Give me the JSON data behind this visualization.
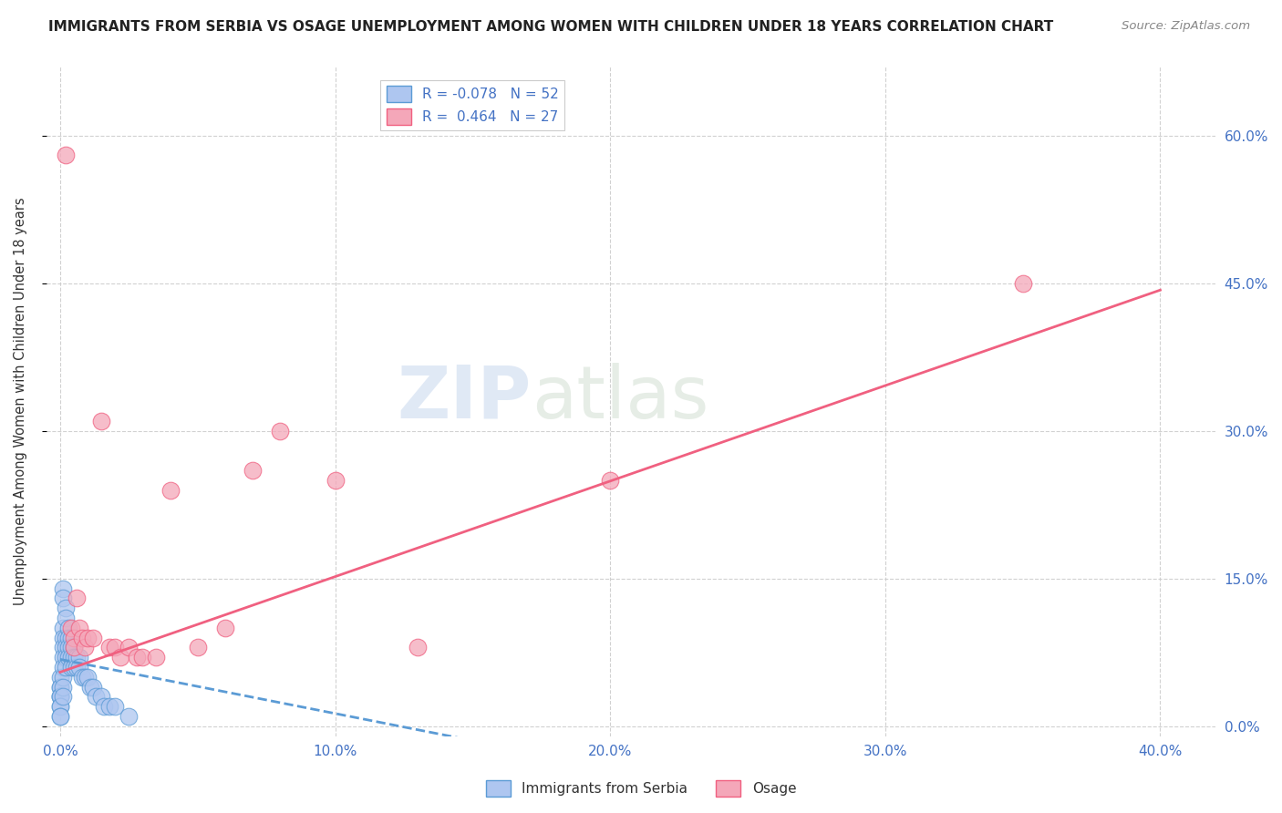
{
  "title": "IMMIGRANTS FROM SERBIA VS OSAGE UNEMPLOYMENT AMONG WOMEN WITH CHILDREN UNDER 18 YEARS CORRELATION CHART",
  "source": "Source: ZipAtlas.com",
  "ylabel": "Unemployment Among Women with Children Under 18 years",
  "xlabel_ticks": [
    "0.0%",
    "10.0%",
    "20.0%",
    "30.0%",
    "40.0%"
  ],
  "xlabel_vals": [
    0.0,
    0.1,
    0.2,
    0.3,
    0.4
  ],
  "ylabel_ticks": [
    "0.0%",
    "15.0%",
    "30.0%",
    "45.0%",
    "60.0%"
  ],
  "ylabel_vals": [
    0.0,
    0.15,
    0.3,
    0.45,
    0.6
  ],
  "xlim": [
    -0.005,
    0.42
  ],
  "ylim": [
    -0.01,
    0.67
  ],
  "legend_entries": [
    {
      "label": "R = -0.078   N = 52",
      "facecolor": "#aec6f0",
      "edgecolor": "#5b9bd5"
    },
    {
      "label": "R =  0.464   N = 27",
      "facecolor": "#f4a7b9",
      "edgecolor": "#f06080"
    }
  ],
  "serbia_scatter_x": [
    0.0,
    0.0,
    0.0,
    0.0,
    0.0,
    0.0,
    0.0,
    0.0,
    0.0,
    0.0,
    0.001,
    0.001,
    0.001,
    0.001,
    0.001,
    0.001,
    0.001,
    0.001,
    0.001,
    0.001,
    0.002,
    0.002,
    0.002,
    0.002,
    0.002,
    0.002,
    0.003,
    0.003,
    0.003,
    0.003,
    0.004,
    0.004,
    0.004,
    0.004,
    0.005,
    0.005,
    0.005,
    0.006,
    0.006,
    0.007,
    0.007,
    0.008,
    0.009,
    0.01,
    0.011,
    0.012,
    0.013,
    0.015,
    0.016,
    0.018,
    0.02,
    0.025
  ],
  "serbia_scatter_y": [
    0.05,
    0.04,
    0.04,
    0.03,
    0.03,
    0.03,
    0.02,
    0.02,
    0.01,
    0.01,
    0.14,
    0.13,
    0.1,
    0.09,
    0.08,
    0.07,
    0.06,
    0.05,
    0.04,
    0.03,
    0.12,
    0.11,
    0.09,
    0.08,
    0.07,
    0.06,
    0.1,
    0.09,
    0.08,
    0.07,
    0.09,
    0.08,
    0.07,
    0.06,
    0.08,
    0.07,
    0.06,
    0.07,
    0.06,
    0.07,
    0.06,
    0.05,
    0.05,
    0.05,
    0.04,
    0.04,
    0.03,
    0.03,
    0.02,
    0.02,
    0.02,
    0.01
  ],
  "osage_scatter_x": [
    0.002,
    0.004,
    0.005,
    0.005,
    0.006,
    0.007,
    0.008,
    0.009,
    0.01,
    0.012,
    0.015,
    0.018,
    0.02,
    0.022,
    0.025,
    0.028,
    0.03,
    0.035,
    0.04,
    0.05,
    0.06,
    0.07,
    0.08,
    0.1,
    0.13,
    0.2,
    0.35
  ],
  "osage_scatter_y": [
    0.58,
    0.1,
    0.09,
    0.08,
    0.13,
    0.1,
    0.09,
    0.08,
    0.09,
    0.09,
    0.31,
    0.08,
    0.08,
    0.07,
    0.08,
    0.07,
    0.07,
    0.07,
    0.24,
    0.08,
    0.1,
    0.26,
    0.3,
    0.25,
    0.08,
    0.25,
    0.45
  ],
  "serbia_trend_x": [
    0.0,
    0.4
  ],
  "serbia_trend_y_intercept": 0.068,
  "serbia_trend_slope": -0.55,
  "osage_trend_x": [
    0.0,
    0.4
  ],
  "osage_trend_y_intercept": 0.055,
  "osage_trend_slope": 0.97,
  "serbia_line_color": "#5b9bd5",
  "osage_line_color": "#f06080",
  "serbia_dot_color": "#aec6f0",
  "osage_dot_color": "#f4a7b9",
  "watermark_zip": "ZIP",
  "watermark_atlas": "atlas",
  "background_color": "#ffffff",
  "grid_color": "#cccccc",
  "tick_color": "#4472c4",
  "title_color": "#222222",
  "source_color": "#888888",
  "ylabel_color": "#333333"
}
